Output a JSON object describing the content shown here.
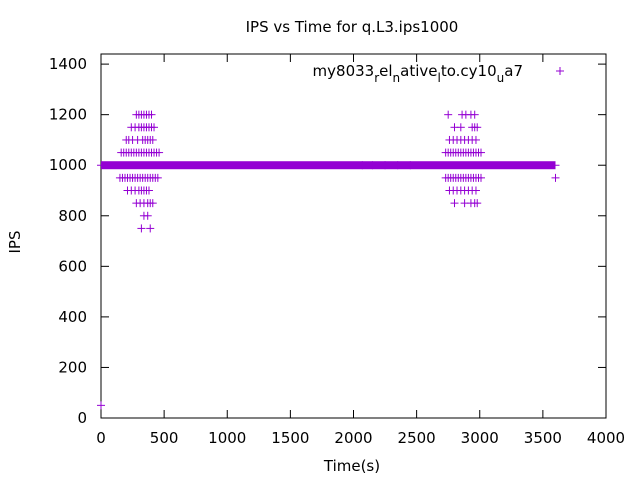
{
  "chart_data": {
    "type": "scatter",
    "title": "IPS vs Time for q.L3.ips1000",
    "xlabel": "Time(s)",
    "ylabel": "IPS",
    "xlim": [
      0,
      4000
    ],
    "ylim": [
      0,
      1440
    ],
    "xticks": [
      0,
      500,
      1000,
      1500,
      2000,
      2500,
      3000,
      3500,
      4000
    ],
    "yticks": [
      0,
      200,
      400,
      600,
      800,
      1000,
      1200,
      1400
    ],
    "grid": false,
    "legend_position": "top-right",
    "marker": "plus",
    "color": "#9400d3",
    "series": [
      {
        "legend_parts": [
          {
            "text": "my8033",
            "sub": false
          },
          {
            "text": "r",
            "sub": true
          },
          {
            "text": "el",
            "sub": false
          },
          {
            "text": "n",
            "sub": true
          },
          {
            "text": "ative",
            "sub": false
          },
          {
            "text": "l",
            "sub": true
          },
          {
            "text": "to.cy10",
            "sub": false
          },
          {
            "text": "u",
            "sub": true
          },
          {
            "text": "a7",
            "sub": false
          }
        ],
        "baseline": {
          "x_start": 0,
          "x_end": 3600,
          "y": 1000
        },
        "points": [
          [
            0,
            50
          ],
          [
            3600,
            950
          ],
          [
            280,
            1200
          ],
          [
            300,
            1200
          ],
          [
            320,
            1200
          ],
          [
            340,
            1200
          ],
          [
            360,
            1200
          ],
          [
            380,
            1200
          ],
          [
            400,
            1200
          ],
          [
            240,
            1150
          ],
          [
            270,
            1150
          ],
          [
            300,
            1150
          ],
          [
            320,
            1150
          ],
          [
            340,
            1150
          ],
          [
            360,
            1150
          ],
          [
            380,
            1150
          ],
          [
            400,
            1150
          ],
          [
            420,
            1150
          ],
          [
            200,
            1100
          ],
          [
            220,
            1100
          ],
          [
            250,
            1100
          ],
          [
            290,
            1100
          ],
          [
            330,
            1100
          ],
          [
            350,
            1100
          ],
          [
            370,
            1100
          ],
          [
            390,
            1100
          ],
          [
            410,
            1100
          ],
          [
            160,
            1050
          ],
          [
            180,
            1050
          ],
          [
            200,
            1050
          ],
          [
            220,
            1050
          ],
          [
            240,
            1050
          ],
          [
            260,
            1050
          ],
          [
            280,
            1050
          ],
          [
            300,
            1050
          ],
          [
            320,
            1050
          ],
          [
            340,
            1050
          ],
          [
            360,
            1050
          ],
          [
            380,
            1050
          ],
          [
            400,
            1050
          ],
          [
            420,
            1050
          ],
          [
            440,
            1050
          ],
          [
            460,
            1050
          ],
          [
            150,
            950
          ],
          [
            170,
            950
          ],
          [
            190,
            950
          ],
          [
            210,
            950
          ],
          [
            230,
            950
          ],
          [
            250,
            950
          ],
          [
            270,
            950
          ],
          [
            290,
            950
          ],
          [
            310,
            950
          ],
          [
            330,
            950
          ],
          [
            350,
            950
          ],
          [
            370,
            950
          ],
          [
            390,
            950
          ],
          [
            410,
            950
          ],
          [
            430,
            950
          ],
          [
            450,
            950
          ],
          [
            210,
            900
          ],
          [
            240,
            900
          ],
          [
            270,
            900
          ],
          [
            300,
            900
          ],
          [
            320,
            900
          ],
          [
            340,
            900
          ],
          [
            360,
            900
          ],
          [
            380,
            900
          ],
          [
            280,
            850
          ],
          [
            310,
            850
          ],
          [
            340,
            850
          ],
          [
            370,
            850
          ],
          [
            390,
            850
          ],
          [
            410,
            850
          ],
          [
            340,
            800
          ],
          [
            370,
            800
          ],
          [
            320,
            750
          ],
          [
            390,
            750
          ],
          [
            2750,
            1200
          ],
          [
            2860,
            1200
          ],
          [
            2890,
            1200
          ],
          [
            2930,
            1200
          ],
          [
            2960,
            1200
          ],
          [
            2800,
            1150
          ],
          [
            2850,
            1150
          ],
          [
            2940,
            1150
          ],
          [
            2960,
            1150
          ],
          [
            2980,
            1150
          ],
          [
            2760,
            1100
          ],
          [
            2790,
            1100
          ],
          [
            2820,
            1100
          ],
          [
            2850,
            1100
          ],
          [
            2880,
            1100
          ],
          [
            2910,
            1100
          ],
          [
            2940,
            1100
          ],
          [
            2970,
            1100
          ],
          [
            2730,
            1050
          ],
          [
            2750,
            1050
          ],
          [
            2770,
            1050
          ],
          [
            2790,
            1050
          ],
          [
            2810,
            1050
          ],
          [
            2830,
            1050
          ],
          [
            2850,
            1050
          ],
          [
            2870,
            1050
          ],
          [
            2890,
            1050
          ],
          [
            2910,
            1050
          ],
          [
            2930,
            1050
          ],
          [
            2950,
            1050
          ],
          [
            2970,
            1050
          ],
          [
            2990,
            1050
          ],
          [
            3010,
            1050
          ],
          [
            2730,
            950
          ],
          [
            2750,
            950
          ],
          [
            2770,
            950
          ],
          [
            2790,
            950
          ],
          [
            2810,
            950
          ],
          [
            2830,
            950
          ],
          [
            2850,
            950
          ],
          [
            2870,
            950
          ],
          [
            2890,
            950
          ],
          [
            2910,
            950
          ],
          [
            2930,
            950
          ],
          [
            2950,
            950
          ],
          [
            2970,
            950
          ],
          [
            2990,
            950
          ],
          [
            3010,
            950
          ],
          [
            2760,
            900
          ],
          [
            2790,
            900
          ],
          [
            2820,
            900
          ],
          [
            2850,
            900
          ],
          [
            2880,
            900
          ],
          [
            2910,
            900
          ],
          [
            2940,
            900
          ],
          [
            2970,
            900
          ],
          [
            2800,
            850
          ],
          [
            2880,
            850
          ],
          [
            2930,
            850
          ],
          [
            2960,
            850
          ],
          [
            2980,
            850
          ],
          [
            2070,
            1000
          ],
          [
            2150,
            1000
          ],
          [
            2250,
            1000
          ],
          [
            2350,
            1000
          ],
          [
            2450,
            1000
          ]
        ]
      }
    ]
  }
}
